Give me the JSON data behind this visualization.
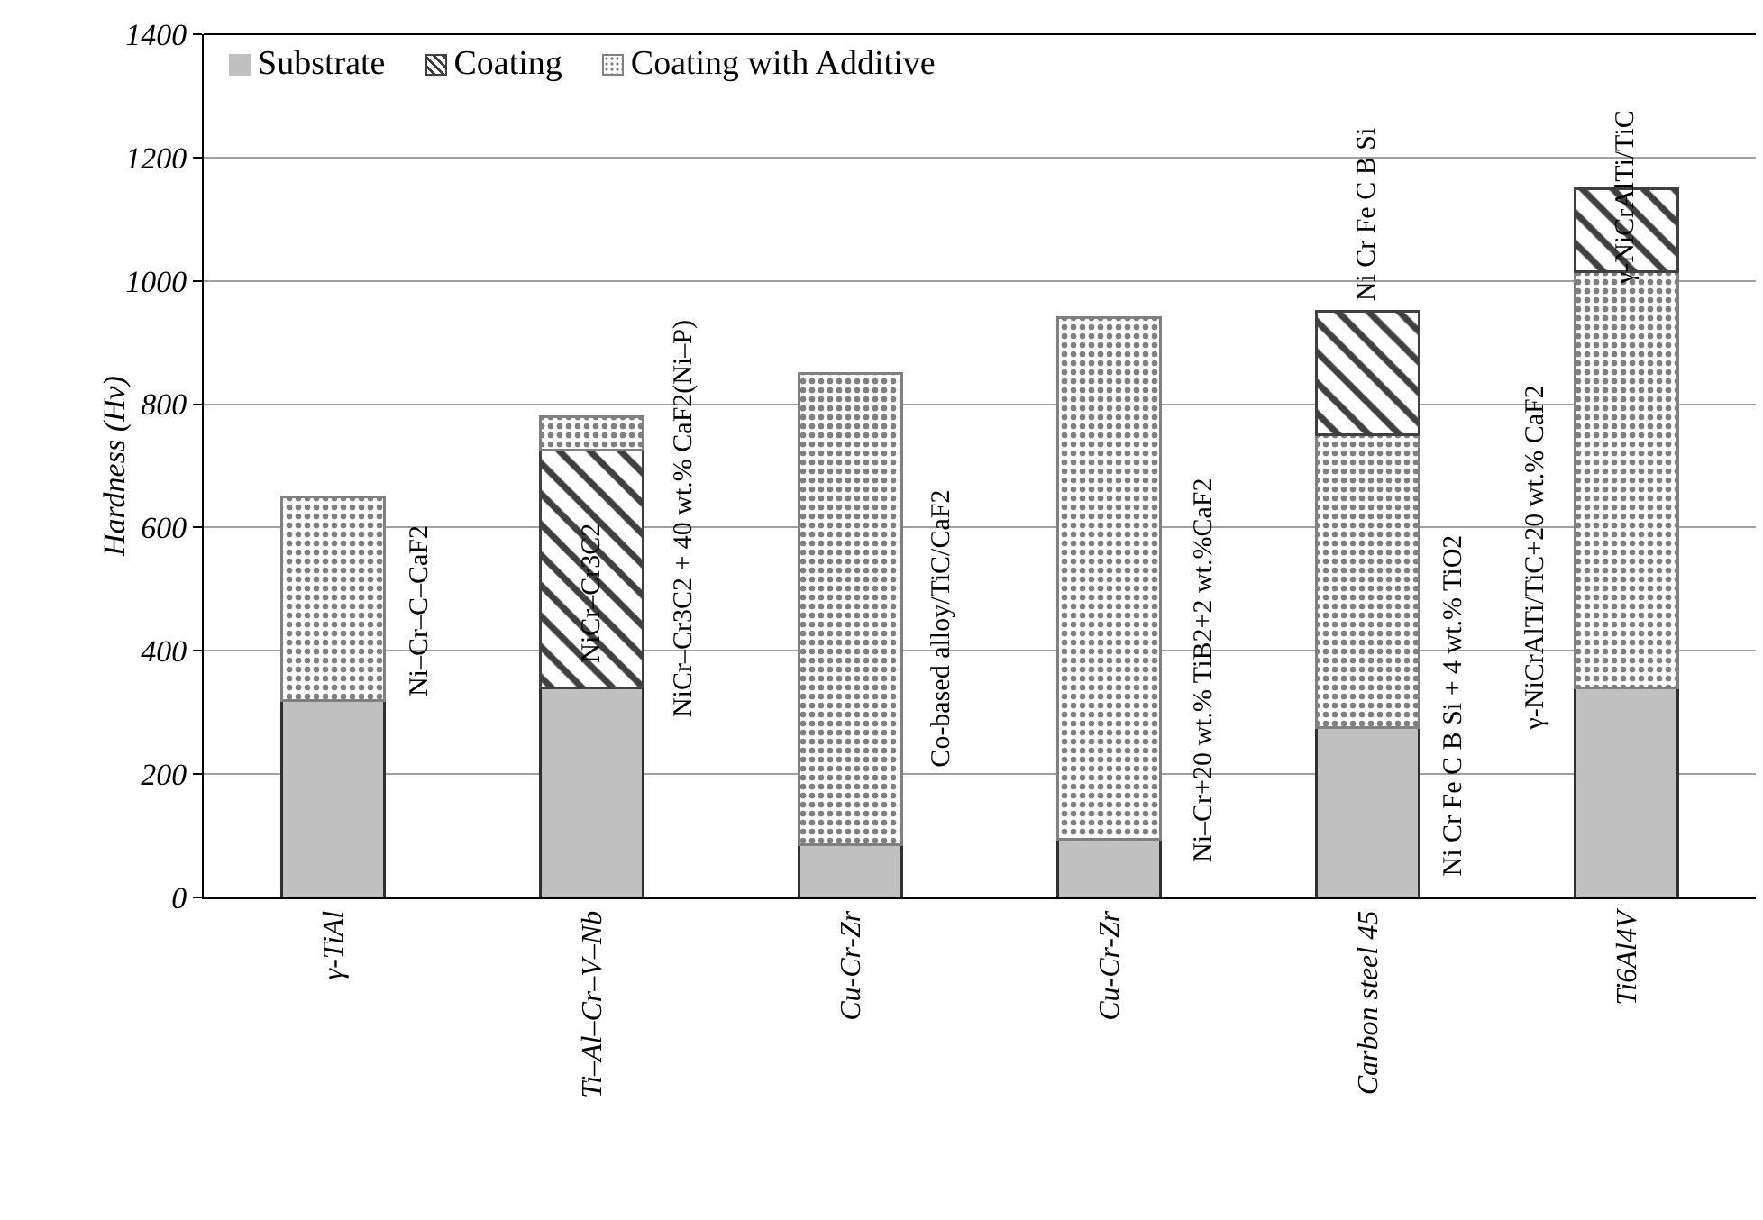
{
  "chart_data": {
    "type": "bar",
    "ylabel": "Hardness (Hv)",
    "categories": [
      "γ-TiAl",
      "Ti–Al–Cr–V–Nb",
      "Cu-Cr-Zr",
      "Cu-Cr-Zr",
      "Carbon steel 45",
      "Ti6Al4V"
    ],
    "stacked": true,
    "series": [
      {
        "name": "Substrate",
        "color": "#c0c0c0",
        "values": [
          320,
          340,
          85,
          95,
          275,
          340
        ]
      },
      {
        "name": "Coating",
        "color": "#404040",
        "values": [
          null,
          385,
          null,
          null,
          null,
          null
        ]
      },
      {
        "name": "Coating with Additive",
        "color": "#808080",
        "values": [
          330,
          55,
          765,
          845,
          475,
          675
        ]
      },
      {
        "color": "#404040",
        "values": [
          null,
          null,
          null,
          null,
          200,
          135
        ]
      }
    ],
    "ylim": [
      0,
      1400
    ],
    "yticks": [
      0,
      200,
      400,
      600,
      800,
      1000,
      1200,
      1400
    ],
    "grid": "y",
    "legend": "top left",
    "annotations": [
      "Ni–Cr–C–CaF2",
      "NiCr–Cr3C2",
      "NiCr–Cr3C2 + 40 wt.% CaF2(Ni–P)",
      "Co-based alloy/TiC/CaF2",
      "Ni–Cr+20 wt.% TiB2+2 wt.%CaF2",
      "Ni Cr Fe C B Si",
      "Ni Cr Fe C B Si + 4 wt.% TiO2",
      "γ-NiCrAlTi/TiC+20 wt.% CaF2",
      "γ-NiCrAlTi/TiC"
    ]
  }
}
